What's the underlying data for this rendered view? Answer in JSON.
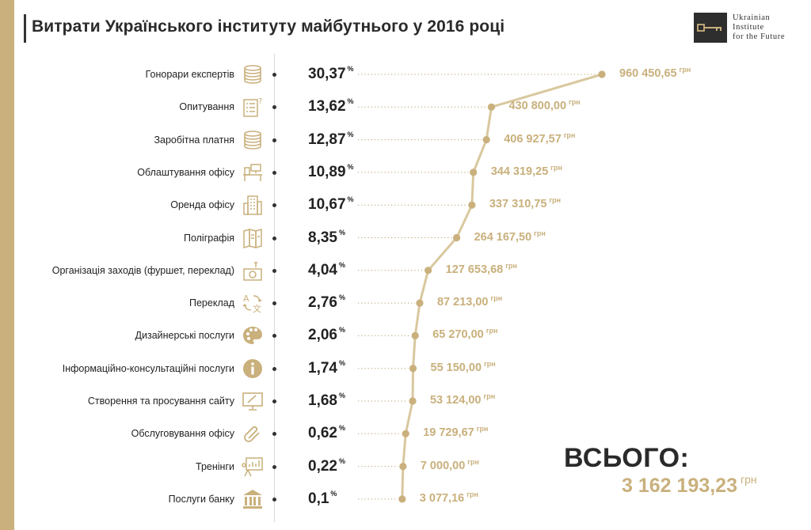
{
  "header": {
    "title": "Витрати Українського інституту майбутнього у 2016 році",
    "logo_lines": [
      "Ukrainian",
      "Institute",
      "for the Future"
    ]
  },
  "colors": {
    "accent": "#c9b07c",
    "text": "#222222",
    "dark": "#2e2e2e"
  },
  "chart_data": {
    "type": "line",
    "title": "Витрати Українського інституту майбутнього у 2016 році",
    "percent_unit": "%",
    "currency_unit": "грн",
    "rows": [
      {
        "label": "Гонорари експертів",
        "icon": "coins-icon",
        "percent": "30,37",
        "amount": "960 450,65",
        "value": 960450.65
      },
      {
        "label": "Опитування",
        "icon": "survey-icon",
        "percent": "13,62",
        "amount": "430 800,00",
        "value": 430800.0
      },
      {
        "label": "Заробітна платня",
        "icon": "coins-icon",
        "percent": "12,87",
        "amount": "406 927,57",
        "value": 406927.57
      },
      {
        "label": "Облаштування офісу",
        "icon": "office-desk-icon",
        "percent": "10,89",
        "amount": "344 319,25",
        "value": 344319.25
      },
      {
        "label": "Оренда офісу",
        "icon": "building-icon",
        "percent": "10,67",
        "amount": "337 310,75",
        "value": 337310.75
      },
      {
        "label": "Поліграфія",
        "icon": "brochure-icon",
        "percent": "8,35",
        "amount": "264 167,50",
        "value": 264167.5
      },
      {
        "label": "Організація заходів (фуршет, переклад)",
        "icon": "event-icon",
        "percent": "4,04",
        "amount": "127 653,68",
        "value": 127653.68
      },
      {
        "label": "Переклад",
        "icon": "translate-icon",
        "percent": "2,76",
        "amount": "87 213,00",
        "value": 87213.0
      },
      {
        "label": "Дизайнерські послуги",
        "icon": "palette-icon",
        "percent": "2,06",
        "amount": "65 270,00",
        "value": 65270.0
      },
      {
        "label": "Інформаційно-консультаційні послуги",
        "icon": "info-icon",
        "percent": "1,74",
        "amount": "55 150,00",
        "value": 55150.0
      },
      {
        "label": "Створення та просування сайту",
        "icon": "monitor-pen-icon",
        "percent": "1,68",
        "amount": "53 124,00",
        "value": 53124.0
      },
      {
        "label": "Обслуговування офісу",
        "icon": "paperclip-icon",
        "percent": "0,62",
        "amount": "19 729,67",
        "value": 19729.67
      },
      {
        "label": "Тренінги",
        "icon": "presentation-icon",
        "percent": "0,22",
        "amount": "7 000,00",
        "value": 7000.0
      },
      {
        "label": "Послуги банку",
        "icon": "bank-icon",
        "percent": "0,1",
        "amount": "3 077,16",
        "value": 3077.16
      }
    ]
  },
  "total": {
    "label": "ВСЬОГО:",
    "value": "3 162 193,23",
    "unit": "грн"
  }
}
